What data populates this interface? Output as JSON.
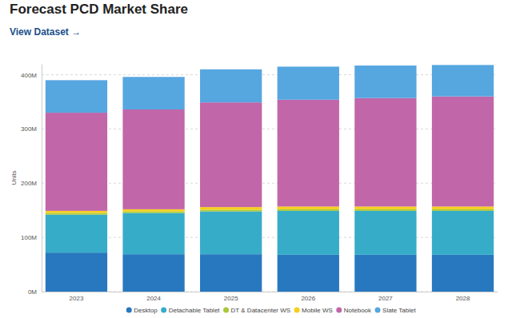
{
  "chart_data": {
    "type": "bar",
    "stacked": true,
    "title": "Forecast PCD Market Share",
    "subtitle": "View Dataset →",
    "ylabel": "Units",
    "categories": [
      "2023",
      "2024",
      "2025",
      "2026",
      "2027",
      "2028"
    ],
    "series": [
      {
        "name": "Desktop",
        "color": "#2878bf",
        "values": [
          72,
          69,
          69,
          68,
          68,
          68
        ]
      },
      {
        "name": "Detachable Tablet",
        "color": "#36acc9",
        "values": [
          70,
          76,
          79,
          81,
          81,
          81
        ]
      },
      {
        "name": "DT & Datacenter WS",
        "color": "#a9c83a",
        "values": [
          3,
          3,
          3,
          3,
          3,
          3
        ]
      },
      {
        "name": "Mobile WS",
        "color": "#f5cf1d",
        "values": [
          4,
          4,
          5,
          5,
          5,
          5
        ]
      },
      {
        "name": "Notebook",
        "color": "#c066a9",
        "values": [
          181,
          184,
          193,
          197,
          200,
          203
        ]
      },
      {
        "name": "Slate Tablet",
        "color": "#56a6e0",
        "values": [
          60,
          60,
          61,
          61,
          60,
          58
        ]
      }
    ],
    "ylim": [
      0,
      420
    ],
    "yticks": [
      {
        "value": 0,
        "label": "0M"
      },
      {
        "value": 100,
        "label": "100M"
      },
      {
        "value": 200,
        "label": "200M"
      },
      {
        "value": 300,
        "label": "300M"
      },
      {
        "value": 400,
        "label": "400M"
      }
    ],
    "grid": true,
    "legend": "bottom"
  }
}
